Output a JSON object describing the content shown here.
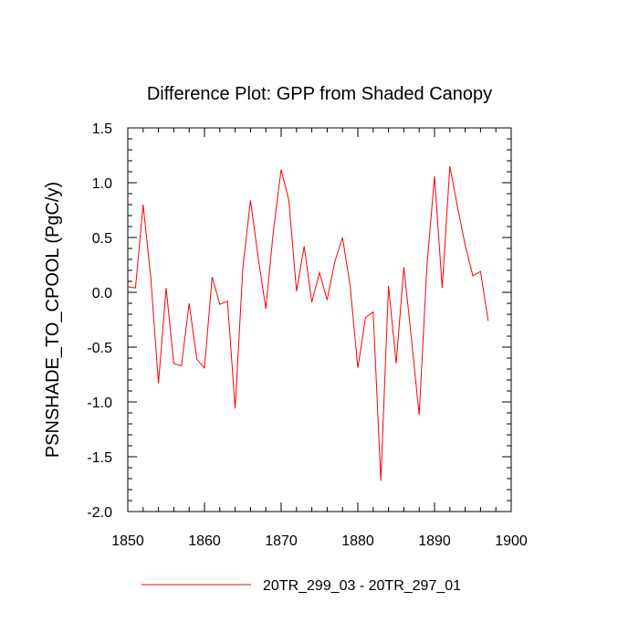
{
  "chart_data": {
    "type": "line",
    "title": "Difference Plot: GPP from Shaded Canopy",
    "xlabel": "",
    "ylabel": "PSNSHADE_TO_CPOOL  (PgC/y)",
    "xlim": [
      1850,
      1900
    ],
    "ylim": [
      -2.0,
      1.5
    ],
    "xticks": [
      1850,
      1860,
      1870,
      1880,
      1890,
      1900
    ],
    "yticks": [
      -2.0,
      -1.5,
      -1.0,
      -0.5,
      0.0,
      0.5,
      1.0,
      1.5
    ],
    "xtick_labels": [
      "1850",
      "1860",
      "1870",
      "1880",
      "1890",
      "1900"
    ],
    "ytick_labels": [
      "-2.0",
      "-1.5",
      "-1.0",
      "-0.5",
      "0.0",
      "0.5",
      "1.0",
      "1.5"
    ],
    "grid": false,
    "legend_position": "bottom",
    "series": [
      {
        "name": "20TR_299_03 - 20TR_297_01",
        "color": "#ff0000",
        "x": [
          1850,
          1851,
          1852,
          1853,
          1854,
          1855,
          1856,
          1857,
          1858,
          1859,
          1860,
          1861,
          1862,
          1863,
          1864,
          1865,
          1866,
          1867,
          1868,
          1869,
          1870,
          1871,
          1872,
          1873,
          1874,
          1875,
          1876,
          1877,
          1878,
          1879,
          1880,
          1881,
          1882,
          1883,
          1884,
          1885,
          1886,
          1887,
          1888,
          1889,
          1890,
          1891,
          1892,
          1893,
          1894,
          1895,
          1896,
          1897
        ],
        "values": [
          0.05,
          0.04,
          0.8,
          0.13,
          -0.83,
          0.04,
          -0.65,
          -0.67,
          -0.1,
          -0.61,
          -0.69,
          0.14,
          -0.11,
          -0.08,
          -1.06,
          0.22,
          0.84,
          0.32,
          -0.15,
          0.57,
          1.12,
          0.84,
          0.01,
          0.42,
          -0.09,
          0.18,
          -0.07,
          0.28,
          0.5,
          0.06,
          -0.69,
          -0.23,
          -0.18,
          -1.72,
          0.06,
          -0.65,
          0.23,
          -0.43,
          -1.12,
          0.23,
          1.06,
          0.04,
          1.15,
          0.78,
          0.43,
          0.15,
          0.19,
          -0.26
        ]
      }
    ]
  }
}
